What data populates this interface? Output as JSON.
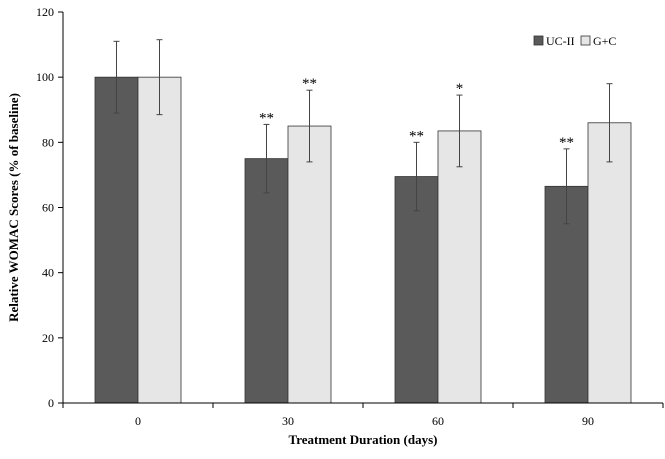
{
  "chart_data": {
    "type": "bar",
    "xlabel": "Treatment Duration (days)",
    "ylabel": "Relative WOMAC Scores (% of baseline)",
    "categories": [
      "0",
      "30",
      "60",
      "90"
    ],
    "ylim": [
      0,
      120
    ],
    "yticks": [
      0,
      20,
      40,
      60,
      80,
      100,
      120
    ],
    "grid": false,
    "legend_position": "top-right",
    "series": [
      {
        "name": "UC-II",
        "color": "#5a5a5a",
        "values": [
          100,
          75,
          69.5,
          66.5
        ],
        "error": [
          11,
          10.5,
          10.5,
          11.5
        ],
        "significance": [
          "",
          "**",
          "**",
          "**"
        ]
      },
      {
        "name": "G+C",
        "color": "#e6e6e6",
        "values": [
          100,
          85,
          83.5,
          86
        ],
        "error": [
          11.5,
          11,
          11,
          12
        ],
        "significance": [
          "",
          "**",
          "*",
          ""
        ]
      }
    ]
  }
}
